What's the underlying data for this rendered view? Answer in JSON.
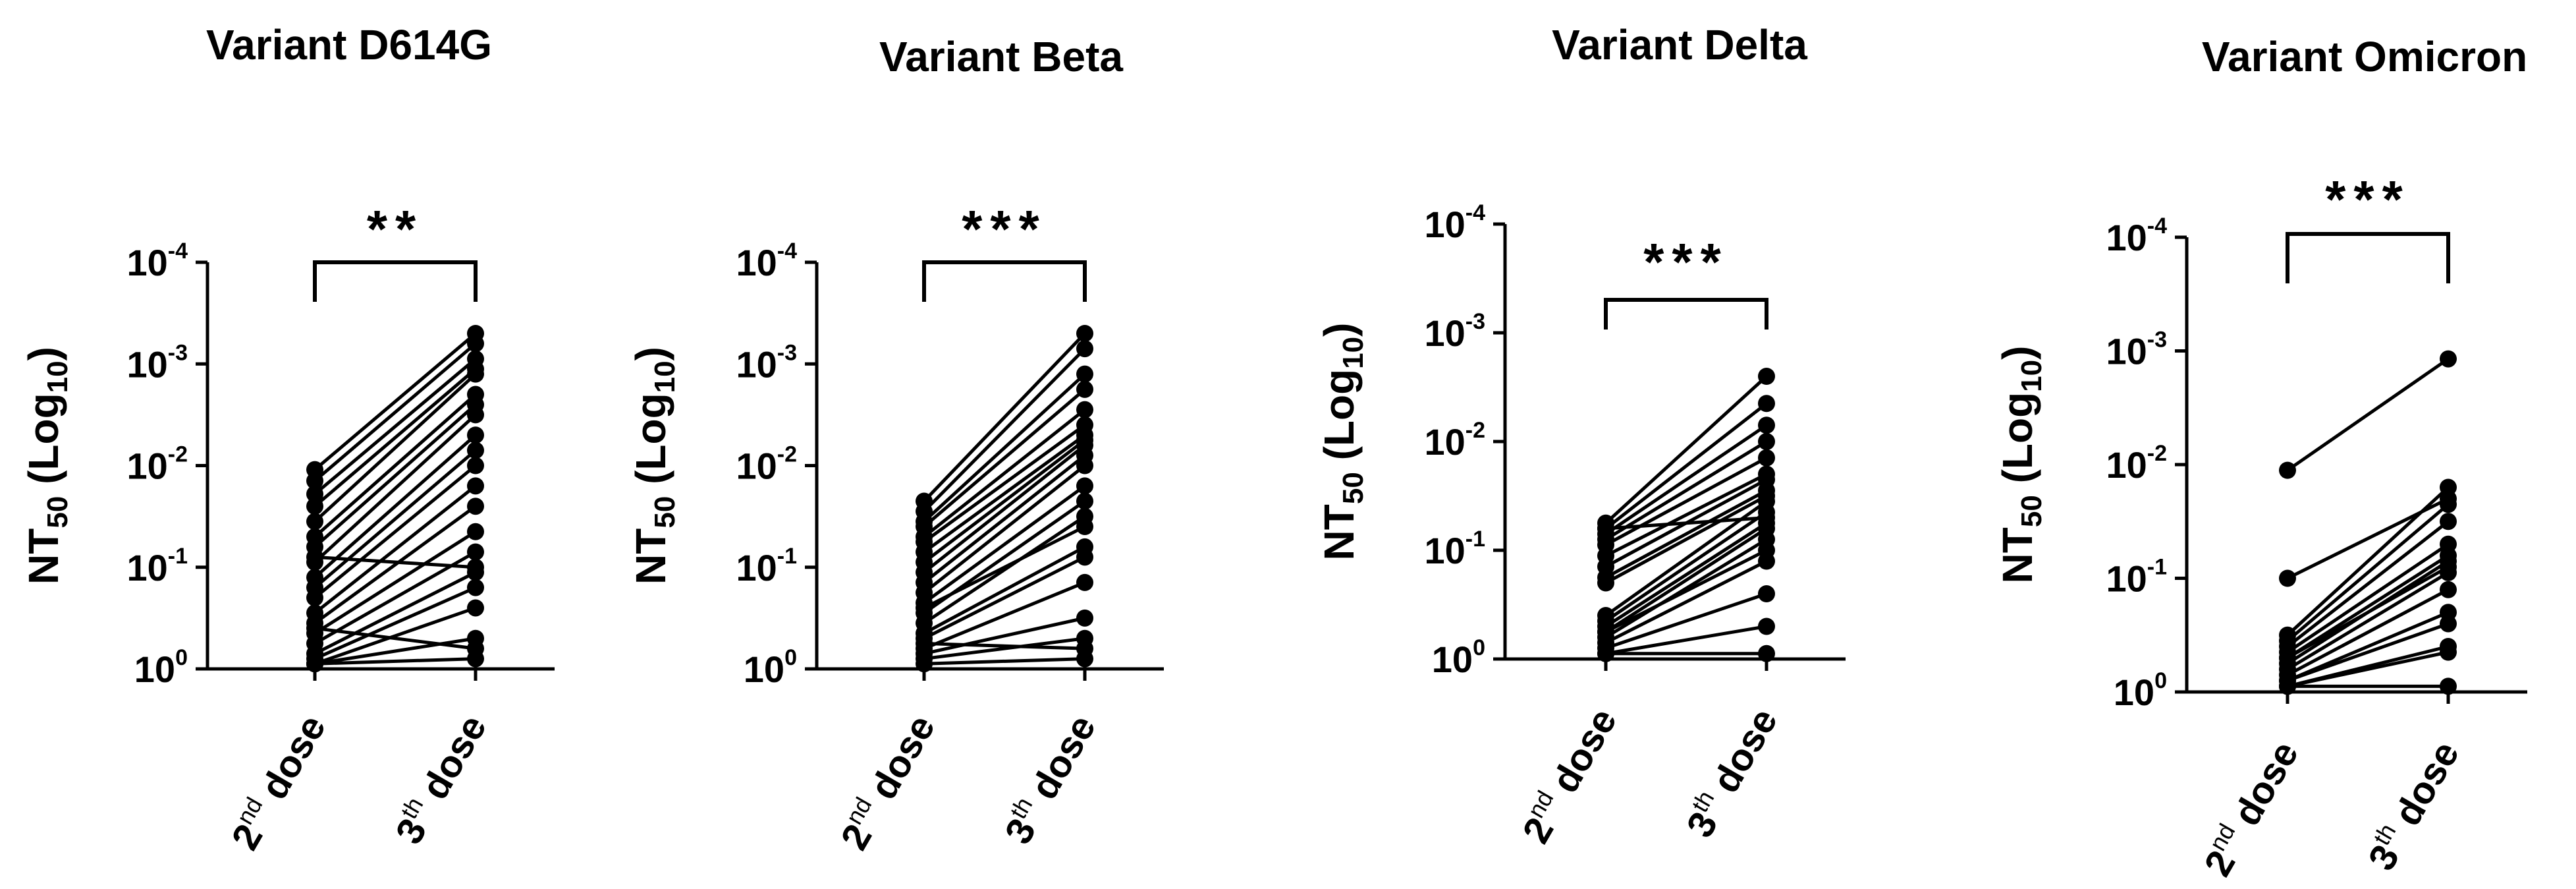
{
  "chart_data": [
    {
      "type": "scatter",
      "title": "Variant D614G",
      "ylabel": "NT",
      "ylabel_sub": "50",
      "ylabel_rest": " (Log",
      "ylabel_sub2": "10",
      "ylabel_close": ")",
      "yticks": [
        {
          "base": "10",
          "exp": "-4",
          "value": -4
        },
        {
          "base": "10",
          "exp": "-3",
          "value": -3
        },
        {
          "base": "10",
          "exp": "-2",
          "value": -2
        },
        {
          "base": "10",
          "exp": "-1",
          "value": -1
        },
        {
          "base": "10",
          "exp": "0",
          "value": 0
        }
      ],
      "ylim": [
        0,
        -4
      ],
      "categories": [
        {
          "main": "2",
          "sup": "nd",
          "rest": " dose"
        },
        {
          "main": "3",
          "sup": "th",
          "rest": " dose"
        }
      ],
      "significance": "**",
      "pairs": [
        [
          -1.96,
          -3.3
        ],
        [
          -1.85,
          -3.2
        ],
        [
          -1.72,
          -3.05
        ],
        [
          -1.6,
          -2.95
        ],
        [
          -1.45,
          -2.9
        ],
        [
          -1.3,
          -2.7
        ],
        [
          -1.2,
          -2.6
        ],
        [
          -1.05,
          -2.5
        ],
        [
          -0.9,
          -2.3
        ],
        [
          -0.8,
          -2.15
        ],
        [
          -0.7,
          -2.0
        ],
        [
          -0.55,
          -1.8
        ],
        [
          -0.45,
          -1.6
        ],
        [
          -0.35,
          -1.35
        ],
        [
          -0.25,
          -1.15
        ],
        [
          -0.15,
          -0.95
        ],
        [
          -0.1,
          -0.8
        ],
        [
          -0.05,
          -0.6
        ],
        [
          -0.05,
          -0.3
        ],
        [
          -0.05,
          -0.1
        ],
        [
          -1.1,
          -1.0
        ],
        [
          -0.4,
          -0.2
        ]
      ]
    },
    {
      "type": "scatter",
      "title": "Variant Beta",
      "ylabel": "NT",
      "ylabel_sub": "50",
      "ylabel_rest": " (Log",
      "ylabel_sub2": "10",
      "ylabel_close": ")",
      "yticks": [
        {
          "base": "10",
          "exp": "-4",
          "value": -4
        },
        {
          "base": "10",
          "exp": "-3",
          "value": -3
        },
        {
          "base": "10",
          "exp": "-2",
          "value": -2
        },
        {
          "base": "10",
          "exp": "-1",
          "value": -1
        },
        {
          "base": "10",
          "exp": "0",
          "value": 0
        }
      ],
      "ylim": [
        0,
        -4
      ],
      "categories": [
        {
          "main": "2",
          "sup": "nd",
          "rest": " dose"
        },
        {
          "main": "3",
          "sup": "th",
          "rest": " dose"
        }
      ],
      "significance": "***",
      "pairs": [
        [
          -1.65,
          -3.3
        ],
        [
          -1.55,
          -3.15
        ],
        [
          -1.45,
          -2.9
        ],
        [
          -1.4,
          -2.75
        ],
        [
          -1.3,
          -2.55
        ],
        [
          -1.25,
          -2.4
        ],
        [
          -1.15,
          -2.3
        ],
        [
          -1.05,
          -2.25
        ],
        [
          -0.95,
          -2.2
        ],
        [
          -0.85,
          -2.1
        ],
        [
          -0.75,
          -2.0
        ],
        [
          -0.65,
          -1.8
        ],
        [
          -0.55,
          -1.65
        ],
        [
          -0.45,
          -1.5
        ],
        [
          -0.35,
          -1.2
        ],
        [
          -0.3,
          -1.1
        ],
        [
          -0.2,
          -0.85
        ],
        [
          -0.15,
          -0.5
        ],
        [
          -0.1,
          -0.3
        ],
        [
          -0.05,
          -0.1
        ],
        [
          -0.6,
          -1.4
        ],
        [
          -0.25,
          -0.2
        ]
      ]
    },
    {
      "type": "scatter",
      "title": "Variant Delta",
      "ylabel": "NT",
      "ylabel_sub": "50",
      "ylabel_rest": " (Log",
      "ylabel_sub2": "10",
      "ylabel_close": ")",
      "yticks": [
        {
          "base": "10",
          "exp": "-4",
          "value": -4
        },
        {
          "base": "10",
          "exp": "-3",
          "value": -3
        },
        {
          "base": "10",
          "exp": "-2",
          "value": -2
        },
        {
          "base": "10",
          "exp": "-1",
          "value": -1
        },
        {
          "base": "10",
          "exp": "0",
          "value": 0
        }
      ],
      "ylim": [
        0,
        -4
      ],
      "categories": [
        {
          "main": "2",
          "sup": "nd",
          "rest": " dose"
        },
        {
          "main": "3",
          "sup": "th",
          "rest": " dose"
        }
      ],
      "significance": "***",
      "pairs": [
        [
          -1.25,
          -2.6
        ],
        [
          -1.2,
          -2.35
        ],
        [
          -1.15,
          -2.15
        ],
        [
          -1.1,
          -2.0
        ],
        [
          -1.05,
          -1.85
        ],
        [
          -0.95,
          -1.7
        ],
        [
          -0.85,
          -1.65
        ],
        [
          -0.75,
          -1.55
        ],
        [
          -0.7,
          -1.5
        ],
        [
          -0.4,
          -1.45
        ],
        [
          -0.35,
          -1.35
        ],
        [
          -0.3,
          -1.25
        ],
        [
          -0.25,
          -1.2
        ],
        [
          -0.2,
          -1.1
        ],
        [
          -0.15,
          -0.9
        ],
        [
          -0.1,
          -0.6
        ],
        [
          -0.05,
          -0.3
        ],
        [
          -0.05,
          -0.05
        ],
        [
          -1.2,
          -1.3
        ],
        [
          -0.25,
          -1.0
        ]
      ]
    },
    {
      "type": "scatter",
      "title": "Variant Omicron",
      "ylabel": "NT",
      "ylabel_sub": "50",
      "ylabel_rest": " (Log",
      "ylabel_sub2": "10",
      "ylabel_close": ")",
      "yticks": [
        {
          "base": "10",
          "exp": "-4",
          "value": -4
        },
        {
          "base": "10",
          "exp": "-3",
          "value": -3
        },
        {
          "base": "10",
          "exp": "-2",
          "value": -2
        },
        {
          "base": "10",
          "exp": "-1",
          "value": -1
        },
        {
          "base": "10",
          "exp": "0",
          "value": 0
        }
      ],
      "ylim": [
        0,
        -4
      ],
      "categories": [
        {
          "main": "2",
          "sup": "nd",
          "rest": " dose"
        },
        {
          "main": "3",
          "sup": "th",
          "rest": " dose"
        }
      ],
      "significance": "***",
      "pairs": [
        [
          -1.95,
          -2.93
        ],
        [
          -1.0,
          -1.7
        ],
        [
          -0.5,
          -1.8
        ],
        [
          -0.45,
          -1.65
        ],
        [
          -0.4,
          -1.5
        ],
        [
          -0.35,
          -1.3
        ],
        [
          -0.3,
          -1.2
        ],
        [
          -0.25,
          -1.15
        ],
        [
          -0.2,
          -1.05
        ],
        [
          -0.15,
          -0.9
        ],
        [
          -0.1,
          -0.6
        ],
        [
          -0.05,
          -0.4
        ],
        [
          -0.05,
          -0.35
        ],
        [
          -0.05,
          -0.05
        ],
        [
          -0.3,
          -1.1
        ],
        [
          -0.1,
          -0.7
        ]
      ]
    }
  ]
}
